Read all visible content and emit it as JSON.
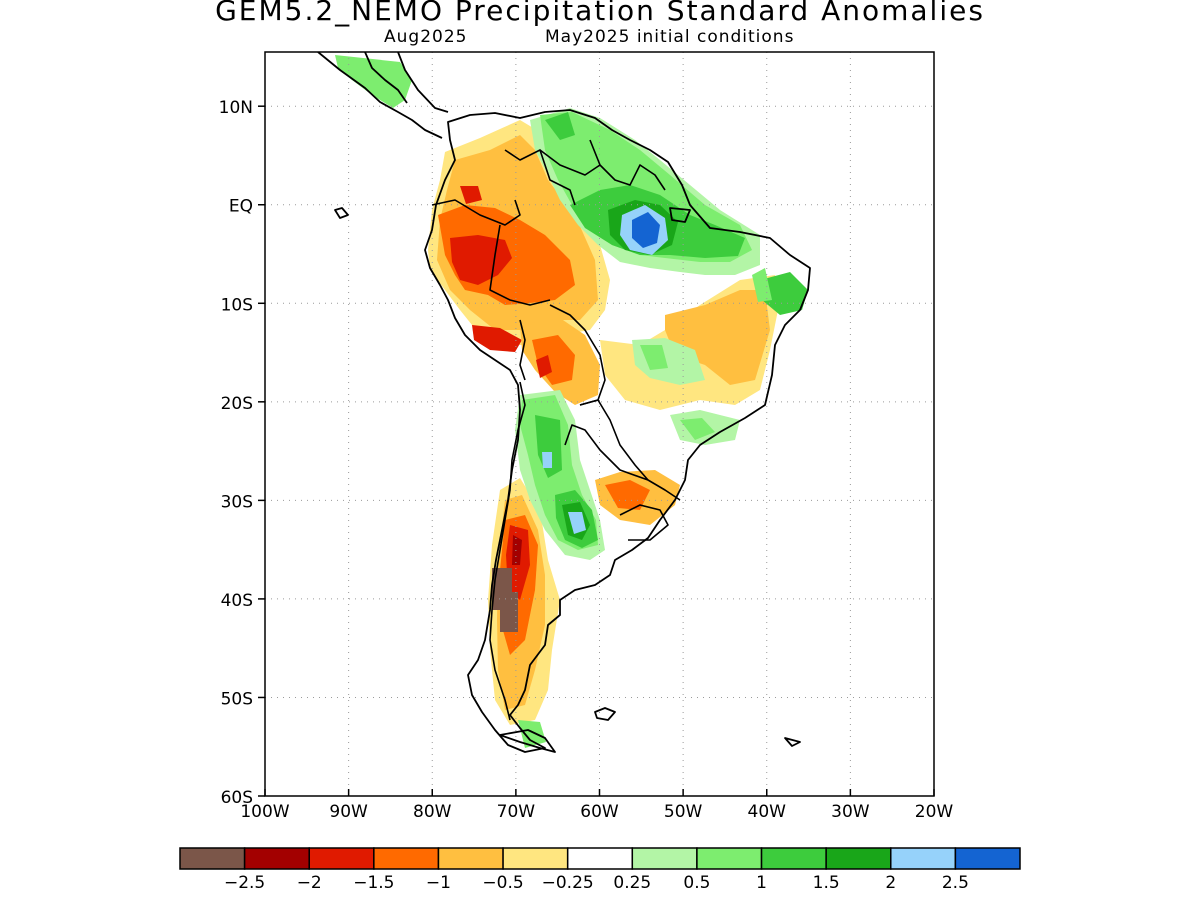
{
  "title": "GEM5.2_NEMO Precipitation Standard Anomalies",
  "subtitle_left": "Aug2025",
  "subtitle_right": "May2025 initial conditions",
  "map": {
    "lat_labels": [
      "10N",
      "EQ",
      "10S",
      "20S",
      "30S",
      "40S",
      "50S",
      "60S"
    ],
    "lat_values": [
      10,
      0,
      -10,
      -20,
      -30,
      -40,
      -50,
      -60
    ],
    "lon_labels": [
      "100W",
      "90W",
      "80W",
      "70W",
      "60W",
      "50W",
      "40W",
      "30W",
      "20W"
    ],
    "lon_values": [
      -100,
      -90,
      -80,
      -70,
      -60,
      -50,
      -40,
      -30,
      -20
    ],
    "lon_range": [
      -100,
      -20
    ],
    "lat_range": [
      -60,
      15.5
    ],
    "grid": "dotted"
  },
  "colorbar": {
    "colors": [
      "#7b5649",
      "#a30000",
      "#e01a00",
      "#ff6a00",
      "#ffbf40",
      "#ffe680",
      "#ffffff",
      "#b3f5a6",
      "#7ded6f",
      "#3dcc3d",
      "#19a619",
      "#96d2fa",
      "#1464d2"
    ],
    "labels": [
      "−2.5",
      "−2",
      "−1.5",
      "−1",
      "−0.5",
      "−0.25",
      "0.25",
      "0.5",
      "1",
      "1.5",
      "2",
      "2.5"
    ]
  }
}
